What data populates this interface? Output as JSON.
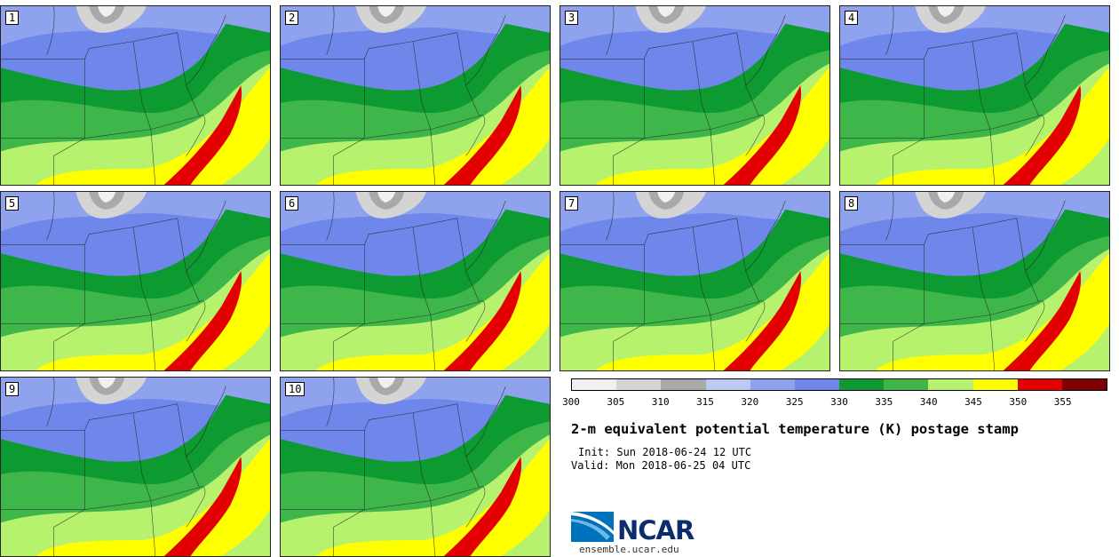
{
  "panels": [
    {
      "label": "1"
    },
    {
      "label": "2"
    },
    {
      "label": "3"
    },
    {
      "label": "4"
    },
    {
      "label": "5"
    },
    {
      "label": "6"
    },
    {
      "label": "7"
    },
    {
      "label": "8"
    },
    {
      "label": "9"
    },
    {
      "label": "10"
    }
  ],
  "colorbar": {
    "tick_labels": [
      "300",
      "305",
      "310",
      "315",
      "320",
      "325",
      "330",
      "335",
      "340",
      "345",
      "350",
      "355"
    ],
    "colors": [
      "#f0f0f0",
      "#d4d4d4",
      "#a9a9a9",
      "#bcc9f5",
      "#8ea2ee",
      "#6f86ea",
      "#0d9a30",
      "#3fb64a",
      "#b6f26d",
      "#ffff00",
      "#e30000",
      "#7e0000"
    ]
  },
  "title": "2-m equivalent potential temperature (K) postage stamp",
  "init": "Init: Sun 2018-06-24 12 UTC",
  "valid": "Valid: Mon 2018-06-25 04 UTC",
  "logo": {
    "text": "NCAR",
    "site": "ensemble.ucar.edu"
  },
  "icon": "ncar-logo-icon"
}
